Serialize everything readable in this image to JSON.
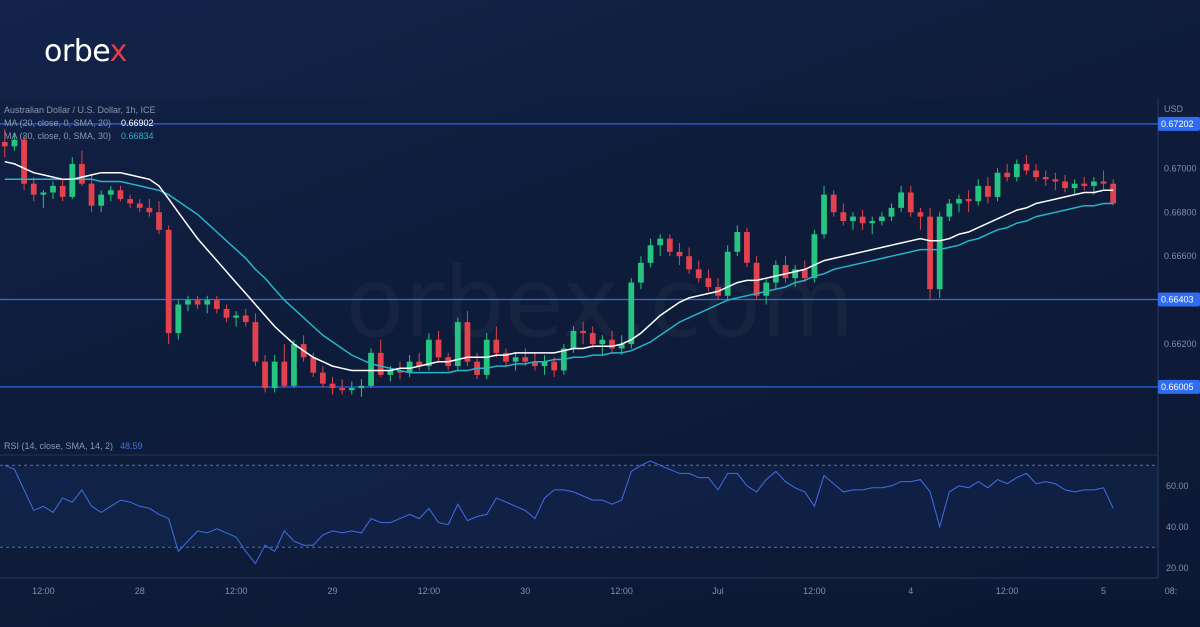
{
  "brand": {
    "logo_text_main": "orbe",
    "logo_text_accent": "x",
    "accent_color": "#e63a4b"
  },
  "watermark": "orbex.com",
  "colors": {
    "up": "#26c480",
    "down": "#e2414e",
    "ma20": "#ffffff",
    "ma30": "#27b3c8",
    "rsi": "#3e6fe8",
    "level_line": "#2f6cf0",
    "badge": "#2f6cf0"
  },
  "legend": {
    "symbol": "Australian Dollar / U.S. Dollar, 1h, ICE",
    "ma20_label": "MA (20, close, 0, SMA, 20)",
    "ma20_value": "0.66902",
    "ma30_label": "MA (30, close, 0, SMA, 30)",
    "ma30_value": "0.66834",
    "rsi_label": "RSI (14, close, SMA, 14, 2)",
    "rsi_value": "48.59"
  },
  "chart_data": {
    "type": "candlestick",
    "currency_label": "USD",
    "ylim": [
      0.659,
      0.6732
    ],
    "y_ticks": [
      "0.67000",
      "0.66800",
      "0.66600",
      "0.66200"
    ],
    "y_tick_values": [
      0.67,
      0.668,
      0.666,
      0.662
    ],
    "levels": [
      {
        "label": "0.67202",
        "value": 0.67202
      },
      {
        "label": "0.66403",
        "value": 0.66403
      },
      {
        "label": "0.66005",
        "value": 0.66005
      }
    ],
    "x_ticks": [
      "12:00",
      "28",
      "12:00",
      "29",
      "12:00",
      "30",
      "12:00",
      "Jul",
      "12:00",
      "4",
      "12:00",
      "5",
      "08:"
    ],
    "x_tick_index": [
      4,
      14,
      24,
      34,
      44,
      54,
      64,
      74,
      84,
      94,
      104,
      114,
      121
    ],
    "candles": [
      [
        0.6712,
        0.6718,
        0.6705,
        0.671
      ],
      [
        0.671,
        0.6716,
        0.6708,
        0.6713
      ],
      [
        0.6713,
        0.6715,
        0.669,
        0.6693
      ],
      [
        0.6693,
        0.6696,
        0.6685,
        0.6688
      ],
      [
        0.6688,
        0.669,
        0.6682,
        0.6689
      ],
      [
        0.6689,
        0.6694,
        0.6686,
        0.6692
      ],
      [
        0.6692,
        0.6695,
        0.6685,
        0.6687
      ],
      [
        0.6687,
        0.6705,
        0.6686,
        0.6702
      ],
      [
        0.6702,
        0.6708,
        0.6692,
        0.6693
      ],
      [
        0.6693,
        0.6697,
        0.668,
        0.6683
      ],
      [
        0.6683,
        0.669,
        0.668,
        0.6688
      ],
      [
        0.6688,
        0.6692,
        0.6685,
        0.669
      ],
      [
        0.669,
        0.6692,
        0.6685,
        0.6686
      ],
      [
        0.6686,
        0.6688,
        0.6682,
        0.6684
      ],
      [
        0.6684,
        0.6686,
        0.668,
        0.6682
      ],
      [
        0.6682,
        0.6686,
        0.6678,
        0.668
      ],
      [
        0.668,
        0.6685,
        0.667,
        0.6672
      ],
      [
        0.6672,
        0.6674,
        0.662,
        0.6625
      ],
      [
        0.6625,
        0.664,
        0.6622,
        0.6638
      ],
      [
        0.6638,
        0.6642,
        0.6635,
        0.664
      ],
      [
        0.664,
        0.6642,
        0.6636,
        0.6638
      ],
      [
        0.6638,
        0.6642,
        0.6634,
        0.664
      ],
      [
        0.664,
        0.6642,
        0.6634,
        0.6636
      ],
      [
        0.6636,
        0.6638,
        0.663,
        0.6632
      ],
      [
        0.6632,
        0.6635,
        0.6628,
        0.6633
      ],
      [
        0.6633,
        0.6636,
        0.6628,
        0.663
      ],
      [
        0.663,
        0.6634,
        0.661,
        0.6612
      ],
      [
        0.6612,
        0.6615,
        0.6598,
        0.66
      ],
      [
        0.66,
        0.6615,
        0.6598,
        0.6612
      ],
      [
        0.6612,
        0.662,
        0.66,
        0.6601
      ],
      [
        0.6601,
        0.6622,
        0.66,
        0.662
      ],
      [
        0.662,
        0.6624,
        0.6612,
        0.6614
      ],
      [
        0.6614,
        0.6616,
        0.6605,
        0.6607
      ],
      [
        0.6607,
        0.661,
        0.66,
        0.6602
      ],
      [
        0.6602,
        0.6605,
        0.6597,
        0.66
      ],
      [
        0.66,
        0.6604,
        0.6597,
        0.6599
      ],
      [
        0.6599,
        0.6603,
        0.6597,
        0.66
      ],
      [
        0.66,
        0.6604,
        0.6596,
        0.6601
      ],
      [
        0.6601,
        0.6618,
        0.66,
        0.6616
      ],
      [
        0.6616,
        0.6622,
        0.6605,
        0.6606
      ],
      [
        0.6606,
        0.661,
        0.6603,
        0.6608
      ],
      [
        0.6608,
        0.6612,
        0.6604,
        0.6607
      ],
      [
        0.6607,
        0.6615,
        0.6605,
        0.6612
      ],
      [
        0.6612,
        0.6616,
        0.6608,
        0.661
      ],
      [
        0.661,
        0.6625,
        0.6608,
        0.6622
      ],
      [
        0.6622,
        0.6626,
        0.6612,
        0.6614
      ],
      [
        0.6614,
        0.6616,
        0.6608,
        0.661
      ],
      [
        0.661,
        0.6632,
        0.6608,
        0.663
      ],
      [
        0.663,
        0.6635,
        0.661,
        0.6612
      ],
      [
        0.6612,
        0.6616,
        0.6604,
        0.6606
      ],
      [
        0.6606,
        0.6625,
        0.6604,
        0.6622
      ],
      [
        0.6622,
        0.6628,
        0.6614,
        0.6616
      ],
      [
        0.6616,
        0.6618,
        0.661,
        0.6612
      ],
      [
        0.6612,
        0.6616,
        0.6608,
        0.6614
      ],
      [
        0.6614,
        0.6618,
        0.661,
        0.6612
      ],
      [
        0.6612,
        0.6616,
        0.6608,
        0.661
      ],
      [
        0.661,
        0.6615,
        0.6606,
        0.6612
      ],
      [
        0.6612,
        0.6614,
        0.6605,
        0.6608
      ],
      [
        0.6608,
        0.662,
        0.6606,
        0.6618
      ],
      [
        0.6618,
        0.6628,
        0.6616,
        0.6626
      ],
      [
        0.6626,
        0.663,
        0.662,
        0.6625
      ],
      [
        0.6625,
        0.6628,
        0.6618,
        0.662
      ],
      [
        0.662,
        0.6624,
        0.6615,
        0.6622
      ],
      [
        0.6622,
        0.6626,
        0.6616,
        0.6618
      ],
      [
        0.6618,
        0.6624,
        0.6615,
        0.662
      ],
      [
        0.662,
        0.665,
        0.6618,
        0.6648
      ],
      [
        0.6648,
        0.666,
        0.6645,
        0.6657
      ],
      [
        0.6657,
        0.6668,
        0.6655,
        0.6665
      ],
      [
        0.6665,
        0.667,
        0.666,
        0.6668
      ],
      [
        0.6668,
        0.667,
        0.666,
        0.6662
      ],
      [
        0.6662,
        0.6666,
        0.6656,
        0.666
      ],
      [
        0.666,
        0.6664,
        0.6652,
        0.6654
      ],
      [
        0.6654,
        0.6658,
        0.6648,
        0.665
      ],
      [
        0.665,
        0.6654,
        0.6644,
        0.6646
      ],
      [
        0.6646,
        0.665,
        0.664,
        0.6642
      ],
      [
        0.6642,
        0.6665,
        0.664,
        0.6662
      ],
      [
        0.6662,
        0.6674,
        0.666,
        0.6671
      ],
      [
        0.6671,
        0.6673,
        0.6655,
        0.6657
      ],
      [
        0.6657,
        0.666,
        0.664,
        0.6642
      ],
      [
        0.6642,
        0.665,
        0.6638,
        0.6648
      ],
      [
        0.6648,
        0.6658,
        0.6645,
        0.6656
      ],
      [
        0.6656,
        0.666,
        0.6648,
        0.665
      ],
      [
        0.665,
        0.6656,
        0.6646,
        0.6654
      ],
      [
        0.6654,
        0.6658,
        0.6648,
        0.665
      ],
      [
        0.665,
        0.6672,
        0.6648,
        0.667
      ],
      [
        0.667,
        0.6692,
        0.6668,
        0.6688
      ],
      [
        0.6688,
        0.669,
        0.6678,
        0.668
      ],
      [
        0.668,
        0.6684,
        0.6674,
        0.6676
      ],
      [
        0.6676,
        0.668,
        0.6672,
        0.6678
      ],
      [
        0.6678,
        0.6681,
        0.6672,
        0.6675
      ],
      [
        0.6675,
        0.6678,
        0.667,
        0.6676
      ],
      [
        0.6676,
        0.668,
        0.6674,
        0.6678
      ],
      [
        0.6678,
        0.6684,
        0.6676,
        0.6682
      ],
      [
        0.6682,
        0.6692,
        0.668,
        0.6689
      ],
      [
        0.6689,
        0.6692,
        0.6678,
        0.668
      ],
      [
        0.668,
        0.6682,
        0.6672,
        0.6678
      ],
      [
        0.6678,
        0.6682,
        0.664,
        0.6645
      ],
      [
        0.6645,
        0.668,
        0.6641,
        0.6678
      ],
      [
        0.6678,
        0.6686,
        0.6676,
        0.6684
      ],
      [
        0.6684,
        0.6688,
        0.668,
        0.6686
      ],
      [
        0.6686,
        0.669,
        0.668,
        0.6685
      ],
      [
        0.6685,
        0.6695,
        0.6683,
        0.6692
      ],
      [
        0.6692,
        0.6696,
        0.6684,
        0.6687
      ],
      [
        0.6687,
        0.67,
        0.6685,
        0.6698
      ],
      [
        0.6698,
        0.6702,
        0.6694,
        0.6696
      ],
      [
        0.6696,
        0.6704,
        0.6694,
        0.6702
      ],
      [
        0.6702,
        0.6706,
        0.6697,
        0.6699
      ],
      [
        0.6699,
        0.6702,
        0.6694,
        0.6696
      ],
      [
        0.6696,
        0.6699,
        0.6692,
        0.6695
      ],
      [
        0.6695,
        0.6698,
        0.669,
        0.6694
      ],
      [
        0.6694,
        0.6697,
        0.6689,
        0.6691
      ],
      [
        0.6691,
        0.6695,
        0.6688,
        0.6693
      ],
      [
        0.6693,
        0.6696,
        0.669,
        0.6692
      ],
      [
        0.6692,
        0.6696,
        0.6688,
        0.6694
      ],
      [
        0.6694,
        0.6699,
        0.669,
        0.6693
      ],
      [
        0.6693,
        0.6695,
        0.6683,
        0.6684
      ]
    ],
    "ma20": [
      0.6703,
      0.6702,
      0.67,
      0.6698,
      0.6697,
      0.6696,
      0.6695,
      0.6695,
      0.6696,
      0.6697,
      0.6698,
      0.6698,
      0.6698,
      0.6697,
      0.6696,
      0.6695,
      0.6692,
      0.6686,
      0.668,
      0.6674,
      0.6668,
      0.6663,
      0.6658,
      0.6653,
      0.6648,
      0.6643,
      0.6638,
      0.6633,
      0.6628,
      0.6624,
      0.662,
      0.6617,
      0.6614,
      0.6612,
      0.661,
      0.6609,
      0.6608,
      0.6608,
      0.6608,
      0.6608,
      0.6608,
      0.6609,
      0.6609,
      0.661,
      0.6611,
      0.6612,
      0.6612,
      0.6613,
      0.6614,
      0.6614,
      0.6614,
      0.6615,
      0.6615,
      0.6616,
      0.6616,
      0.6616,
      0.6616,
      0.6616,
      0.6617,
      0.6618,
      0.6618,
      0.6619,
      0.6619,
      0.6619,
      0.662,
      0.6622,
      0.6625,
      0.6629,
      0.6633,
      0.6636,
      0.6639,
      0.6641,
      0.6642,
      0.6643,
      0.6644,
      0.6646,
      0.6648,
      0.6649,
      0.6649,
      0.665,
      0.6651,
      0.6652,
      0.6653,
      0.6654,
      0.6656,
      0.6658,
      0.6659,
      0.666,
      0.6661,
      0.6662,
      0.6663,
      0.6664,
      0.6665,
      0.6666,
      0.6667,
      0.6668,
      0.6667,
      0.6667,
      0.6668,
      0.667,
      0.6671,
      0.6673,
      0.6675,
      0.6677,
      0.6679,
      0.6681,
      0.6682,
      0.6684,
      0.6685,
      0.6686,
      0.6687,
      0.6688,
      0.6689,
      0.6689,
      0.669,
      0.669
    ],
    "ma30": [
      0.6695,
      0.6695,
      0.6695,
      0.6695,
      0.6695,
      0.6695,
      0.6695,
      0.6695,
      0.6695,
      0.6695,
      0.6694,
      0.6694,
      0.6694,
      0.6693,
      0.6692,
      0.6691,
      0.669,
      0.6688,
      0.6685,
      0.6682,
      0.6679,
      0.6675,
      0.6671,
      0.6667,
      0.6663,
      0.6659,
      0.6654,
      0.665,
      0.6645,
      0.664,
      0.6636,
      0.6632,
      0.6628,
      0.6624,
      0.6621,
      0.6618,
      0.6615,
      0.6613,
      0.6611,
      0.661,
      0.6609,
      0.6608,
      0.6607,
      0.6607,
      0.6607,
      0.6607,
      0.6607,
      0.6608,
      0.6608,
      0.6609,
      0.6609,
      0.661,
      0.661,
      0.6611,
      0.6611,
      0.6612,
      0.6612,
      0.6613,
      0.6613,
      0.6614,
      0.6614,
      0.6615,
      0.6615,
      0.6616,
      0.6616,
      0.6617,
      0.6619,
      0.6621,
      0.6624,
      0.6627,
      0.663,
      0.6632,
      0.6634,
      0.6636,
      0.6638,
      0.664,
      0.6641,
      0.6642,
      0.6643,
      0.6644,
      0.6645,
      0.6646,
      0.6648,
      0.6649,
      0.6651,
      0.6652,
      0.6654,
      0.6655,
      0.6656,
      0.6657,
      0.6658,
      0.6659,
      0.666,
      0.6661,
      0.6662,
      0.6663,
      0.6663,
      0.6663,
      0.6664,
      0.6665,
      0.6667,
      0.6668,
      0.667,
      0.6672,
      0.6673,
      0.6675,
      0.6676,
      0.6678,
      0.6679,
      0.668,
      0.6681,
      0.6682,
      0.6683,
      0.6683,
      0.6684,
      0.6684
    ],
    "rsi": {
      "ylim": [
        15,
        75
      ],
      "y_ticks": [
        "60.00",
        "40.00",
        "20.00"
      ],
      "y_tick_values": [
        60,
        40,
        20
      ],
      "band": [
        30,
        70
      ],
      "values": [
        70,
        68,
        58,
        48,
        50,
        47,
        54,
        52,
        58,
        50,
        47,
        50,
        53,
        52,
        50,
        49,
        46,
        44,
        28,
        33,
        38,
        37,
        39,
        37,
        35,
        28,
        22,
        31,
        28,
        38,
        33,
        31,
        31,
        36,
        38,
        37,
        38,
        37,
        44,
        42,
        42,
        44,
        46,
        44,
        49,
        42,
        41,
        51,
        43,
        45,
        46,
        54,
        52,
        50,
        48,
        44,
        54,
        58,
        58,
        57,
        55,
        53,
        53,
        51,
        53,
        67,
        70,
        72,
        70,
        68,
        66,
        66,
        64,
        64,
        58,
        66,
        66,
        60,
        57,
        63,
        67,
        62,
        59,
        57,
        50,
        65,
        61,
        57,
        58,
        58,
        59,
        59,
        60,
        62,
        62,
        63,
        57,
        40,
        57,
        60,
        59,
        62,
        59,
        63,
        61,
        64,
        66,
        61,
        62,
        61,
        58,
        57,
        58,
        58,
        59,
        49
      ]
    }
  }
}
